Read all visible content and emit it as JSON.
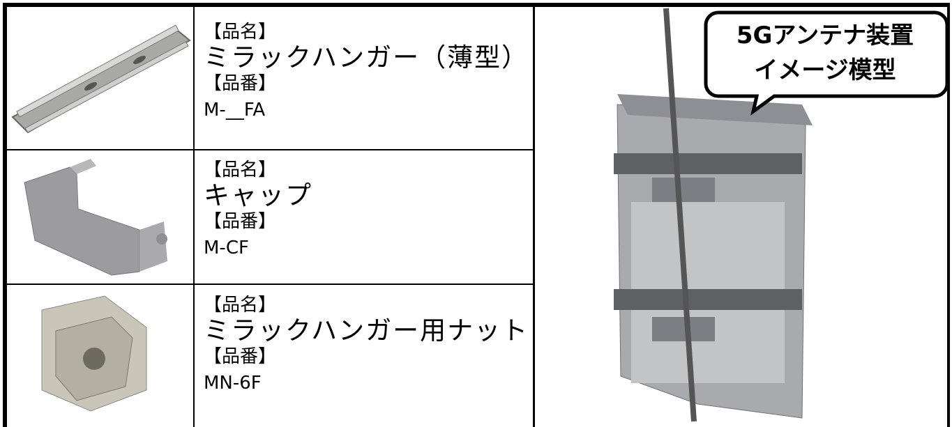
{
  "table": {
    "rows": [
      {
        "name_label": "【品名】",
        "name": "ミラックハンガー（薄型）",
        "code_label": "【品番】",
        "code": "M-__FA"
      },
      {
        "name_label": "【品名】",
        "name": "キャップ",
        "code_label": "【品番】",
        "code": "M-CF"
      },
      {
        "name_label": "【品名】",
        "name": "ミラックハンガー用ナット",
        "code_label": "【品番】",
        "code": "MN-6F"
      }
    ]
  },
  "callout": {
    "lines": [
      "5Gアンテナ装置",
      "イメージ模型"
    ]
  }
}
